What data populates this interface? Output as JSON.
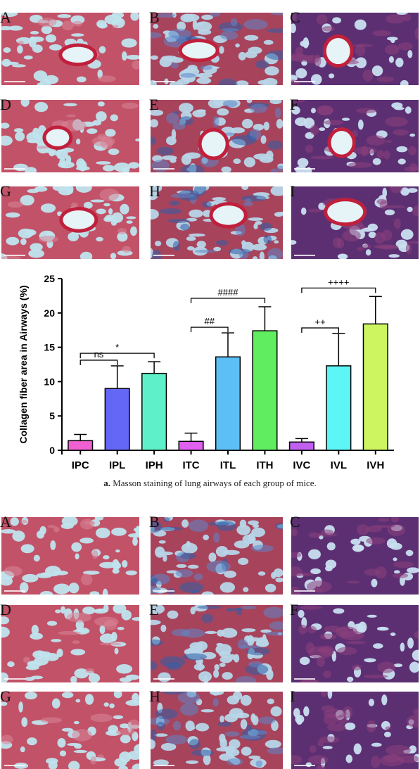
{
  "figure_a": {
    "panel_labels": [
      "A",
      "B",
      "C",
      "D",
      "E",
      "F",
      "G",
      "H",
      "I"
    ],
    "caption_label": "a.",
    "caption_text": " Masson staining of lung airways of each group of mice."
  },
  "figure_b": {
    "panel_labels": [
      "A",
      "B",
      "C",
      "D",
      "E",
      "F",
      "G",
      "H",
      "I"
    ]
  },
  "colors": {
    "background_light": "#bfe4ee",
    "tissue_red": "#b8334a",
    "collagen_blue": "#2e5fa8",
    "dense_purple": "#5a2a6e"
  },
  "chart_data": {
    "type": "bar",
    "ylabel": "Collagen fiber area in Airways (%)",
    "xlabel": "",
    "ylim": [
      0,
      25
    ],
    "yticks": [
      0,
      5,
      10,
      15,
      20,
      25
    ],
    "categories": [
      "IPC",
      "IPL",
      "IPH",
      "ITC",
      "ITL",
      "ITH",
      "IVC",
      "IVL",
      "IVH"
    ],
    "values": [
      1.4,
      9.0,
      11.2,
      1.3,
      13.6,
      17.4,
      1.2,
      12.3,
      18.4
    ],
    "errors": [
      0.9,
      3.3,
      1.7,
      1.2,
      3.5,
      3.5,
      0.5,
      4.7,
      4.0
    ],
    "bar_colors": [
      "#f060d0",
      "#6466f5",
      "#5ef0c8",
      "#e060f0",
      "#5cc0f6",
      "#60ee60",
      "#c060f0",
      "#5cf6f6",
      "#ccf560"
    ],
    "grid": false,
    "annotations": [
      {
        "from": "IPC",
        "to": "IPL",
        "label": "ns",
        "level": 1
      },
      {
        "from": "IPC",
        "to": "IPH",
        "label": "*",
        "level": 2
      },
      {
        "from": "ITC",
        "to": "ITL",
        "label": "##",
        "level": 1
      },
      {
        "from": "ITC",
        "to": "ITH",
        "label": "####",
        "level": 2
      },
      {
        "from": "IVC",
        "to": "IVL",
        "label": "++",
        "level": 1
      },
      {
        "from": "IVC",
        "to": "IVH",
        "label": "++++",
        "level": 2
      }
    ]
  }
}
